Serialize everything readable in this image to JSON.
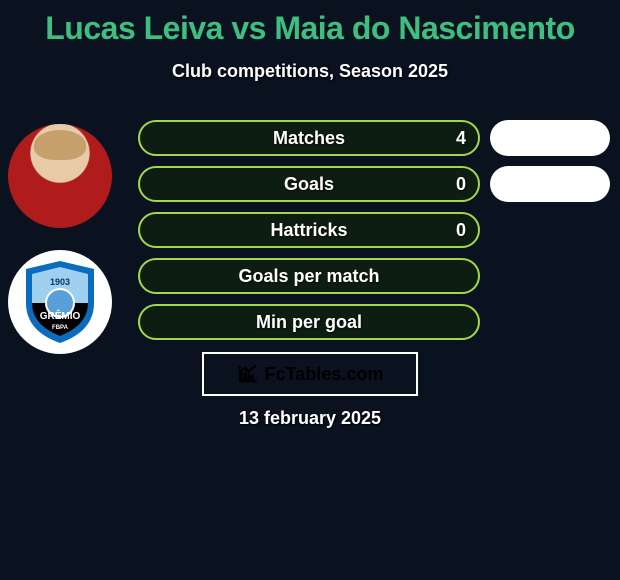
{
  "title": {
    "text": "Lucas Leiva vs Maia do Nascimento",
    "color": "#3fbf7f",
    "fontsize": 32
  },
  "subtitle": {
    "text": "Club competitions, Season 2025",
    "color": "#ffffff",
    "fontsize": 18
  },
  "background_color": "#0a1220",
  "bar_style": {
    "border_color": "#a3d84a",
    "border_width": 2,
    "fill_color": "#0e1d12",
    "label_color": "#ffffff",
    "value_color": "#ffffff",
    "height": 36,
    "radius": 18
  },
  "stats": [
    {
      "label": "Matches",
      "value": "4"
    },
    {
      "label": "Goals",
      "value": "0"
    },
    {
      "label": "Hattricks",
      "value": "0"
    },
    {
      "label": "Goals per match",
      "value": ""
    },
    {
      "label": "Min per goal",
      "value": ""
    }
  ],
  "right_badges": [
    {
      "color": "#ffffff"
    },
    {
      "color": "#ffffff"
    }
  ],
  "avatars": [
    {
      "kind": "player",
      "name": "Lucas Leiva",
      "jersey_color": "#b01c1c"
    },
    {
      "kind": "club",
      "name": "Grêmio",
      "crest_text": "GRÊMIO",
      "crest_sub": "FBPA",
      "crest_year": "1903",
      "crest_colors": {
        "outer": "#0a6bbf",
        "inner_top": "#9fd0f0",
        "inner_bottom": "#000000",
        "globe": "#5aa0d8"
      }
    }
  ],
  "logo": {
    "text": "FcTables.com",
    "color": "#000000",
    "box_border": "#ffffff",
    "icon_color": "#000000"
  },
  "date": {
    "text": "13 february 2025",
    "color": "#ffffff"
  }
}
